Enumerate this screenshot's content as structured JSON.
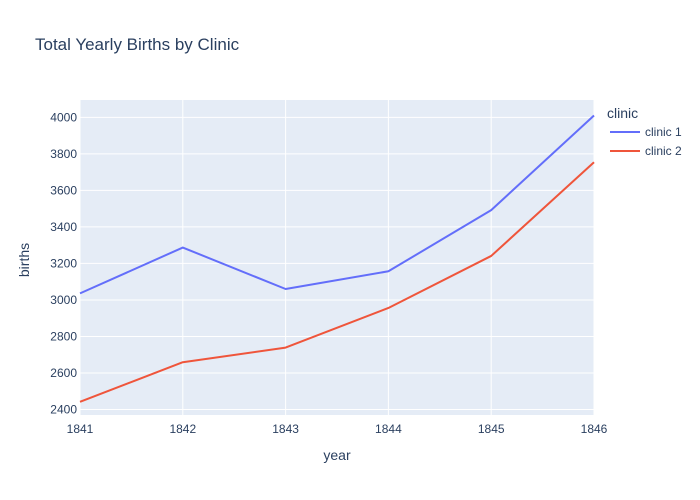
{
  "chart_data": {
    "type": "line",
    "title": "Total Yearly Births by Clinic",
    "xlabel": "year",
    "ylabel": "births",
    "x": [
      1841,
      1842,
      1843,
      1844,
      1845,
      1846
    ],
    "x_ticks": [
      "1841",
      "1842",
      "1843",
      "1844",
      "1845",
      "1846"
    ],
    "xlim": [
      1841,
      1846
    ],
    "y_ticks": [
      "2400",
      "2600",
      "2800",
      "3000",
      "3200",
      "3400",
      "3600",
      "3800",
      "4000"
    ],
    "y_tick_values": [
      2400,
      2600,
      2800,
      3000,
      3200,
      3400,
      3600,
      3800,
      4000
    ],
    "ylim": [
      2370,
      4095
    ],
    "grid": true,
    "legend": {
      "title": "clinic",
      "placement": "right"
    },
    "series": [
      {
        "name": "clinic 1",
        "color": "#636efa",
        "values": [
          3036,
          3287,
          3060,
          3157,
          3492,
          4010
        ]
      },
      {
        "name": "clinic 2",
        "color": "#ef553b",
        "values": [
          2442,
          2659,
          2739,
          2956,
          3241,
          3754
        ]
      }
    ],
    "plot_background": "#e5ecf6"
  }
}
